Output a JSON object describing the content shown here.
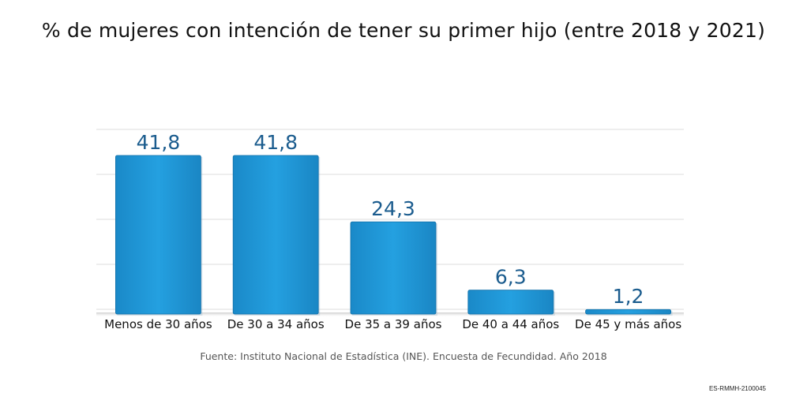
{
  "title": "% de mujeres con intención de tener su primer hijo (entre 2018 y 2021)",
  "source": "Fuente: Instituto Nacional de Estadística (INE). Encuesta de Fecundidad. Año 2018",
  "code": "ES-RMMH-2100045",
  "colors": {
    "bar": "#1e96d6",
    "bar_dark": "#0f6fa8",
    "value_label": "#1b5c8e",
    "grid": "#dddddd"
  },
  "chart_data": {
    "type": "bar",
    "title": "% de mujeres con intención de tener su primer hijo (entre 2018 y 2021)",
    "categories": [
      "Menos de 30 años",
      "De 30 a 34 años",
      "De 35 a 39 años",
      "De 40 a 44 años",
      "De 45 y más años"
    ],
    "values": [
      41.8,
      41.8,
      24.3,
      6.3,
      1.2
    ],
    "value_labels": [
      "41,8",
      "41,8",
      "24,3",
      "6,3",
      "1,2"
    ],
    "ylim": [
      0,
      42
    ],
    "grid": true,
    "legend": "none"
  }
}
